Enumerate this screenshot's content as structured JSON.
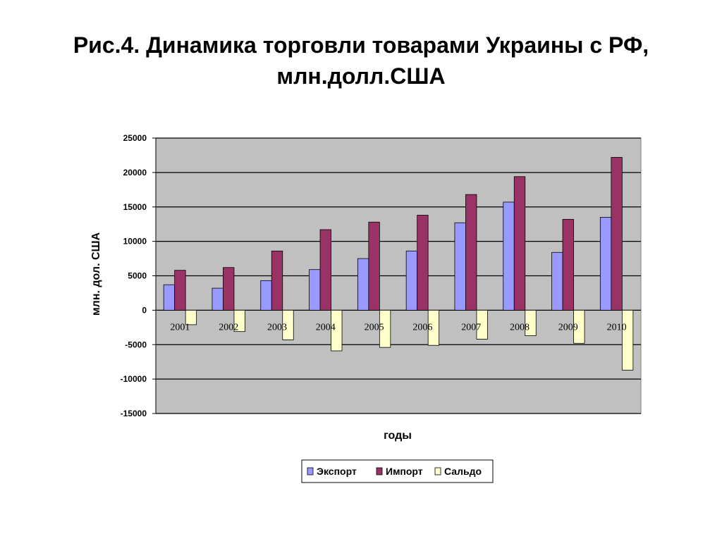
{
  "title": {
    "line1": "Рис.4. Динамика торговли товарами Украины с РФ,",
    "line2": "млн.долл.США"
  },
  "chart_data": {
    "type": "bar",
    "categories": [
      "2001",
      "2002",
      "2003",
      "2004",
      "2005",
      "2006",
      "2007",
      "2008",
      "2009",
      "2010"
    ],
    "series": [
      {
        "name": "Экспорт",
        "color": "#9999ff",
        "values": [
          3700,
          3200,
          4300,
          5900,
          7500,
          8600,
          12700,
          15700,
          8400,
          13500
        ]
      },
      {
        "name": "Импорт",
        "color": "#993366",
        "values": [
          5800,
          6200,
          8600,
          11700,
          12800,
          13800,
          16800,
          19400,
          13200,
          22200
        ]
      },
      {
        "name": "Сальдо",
        "color": "#ffffcc",
        "values": [
          -2100,
          -3100,
          -4300,
          -5900,
          -5400,
          -5100,
          -4200,
          -3700,
          -4800,
          -8700
        ]
      }
    ],
    "xlabel": "годы",
    "ylabel": "млн. дол. США",
    "ylim": [
      -15000,
      25000
    ],
    "yticks": [
      "25000",
      "20000",
      "15000",
      "10000",
      "5000",
      "0",
      "-5000",
      "-10000",
      "-15000"
    ],
    "grid": true,
    "plot_background": "#c0c0c0",
    "legend_position": "bottom"
  }
}
